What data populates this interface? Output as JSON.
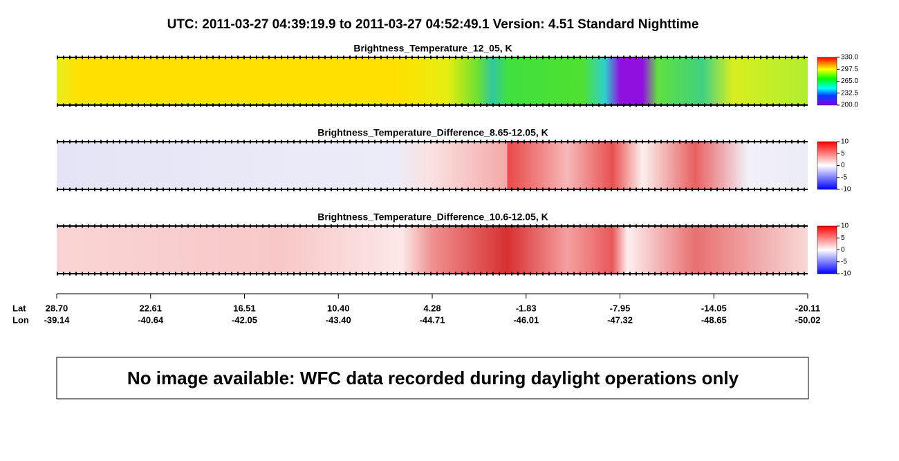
{
  "title": "UTC:  2011-03-27   04:39:19.9  to  2011-03-27   04:52:49.1    Version: 4.51  Standard Nighttime",
  "chart_data": [
    {
      "type": "heatmap",
      "title": "Brightness_Temperature_12_05, K",
      "clim": [
        200,
        330
      ],
      "cticks": [
        {
          "value": 330,
          "label": "330.0"
        },
        297.5,
        {
          "value": 265,
          "label": "265.0"
        },
        232.5,
        {
          "value": 200,
          "label": "200.0"
        }
      ]
    },
    {
      "type": "heatmap",
      "title": "Brightness_Temperature_Difference_8.65-12.05, K",
      "clim": [
        -10,
        10
      ],
      "cticks": [
        10,
        5,
        0,
        -5,
        -10
      ]
    },
    {
      "type": "heatmap",
      "title": "Brightness_Temperature_Difference_10.6-12.05, K",
      "clim": [
        -10,
        10
      ],
      "cticks": [
        10,
        5,
        0,
        -5,
        -10
      ]
    }
  ],
  "x_axis": {
    "lat_label": "Lat",
    "lon_label": "Lon",
    "lat": [
      {
        "value": 28.7,
        "label": "28.70"
      },
      22.61,
      16.51,
      {
        "value": 10.4,
        "label": "10.40"
      },
      4.28,
      -1.83,
      -7.95,
      -14.05,
      -20.11
    ],
    "lon": [
      -39.14,
      -40.64,
      -42.05,
      {
        "value": -43.4,
        "label": "-43.40"
      },
      -44.71,
      -46.01,
      -47.32,
      -48.65,
      -50.02
    ]
  },
  "message": "No image available: WFC data recorded during daylight operations only"
}
